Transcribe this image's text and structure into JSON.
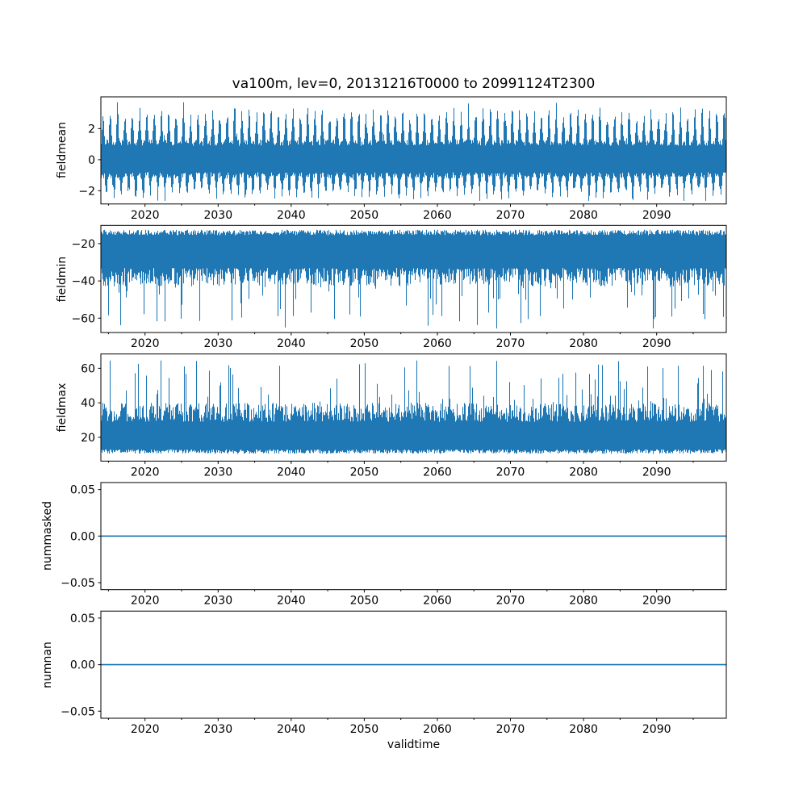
{
  "figure": {
    "background": "#ffffff",
    "line_color": "#1f77b4",
    "axes_color": "#000000"
  },
  "chart_data": [
    {
      "type": "line",
      "title": "va100m, lev=0, 20131216T0000 to 20991124T2300",
      "ylabel": "fieldmean",
      "xlabel": "",
      "xlim": [
        2013.96,
        2099.53
      ],
      "ylim": [
        -2.85,
        4.05
      ],
      "xticks": [
        2020,
        2030,
        2040,
        2050,
        2060,
        2070,
        2080,
        2090
      ],
      "xtick_labels": [
        "2020",
        "2030",
        "2040",
        "2050",
        "2060",
        "2070",
        "2080",
        "2090"
      ],
      "xticks_minor": [
        2015,
        2025,
        2035,
        2045,
        2055,
        2065,
        2075,
        2085,
        2095
      ],
      "yticks": [
        -2,
        0,
        2
      ],
      "ytick_labels": [
        "−2",
        "0",
        "2"
      ],
      "grid": false,
      "legend": null,
      "series": [
        {
          "name": "fieldmean",
          "color": "#1f77b4",
          "style": "seasonal_band",
          "period_years": 1,
          "base_top": 0.9,
          "base_top_jitter": 0.4,
          "seasonal_top": 1.4,
          "seasonal_top_jitter": 0.9,
          "base_bottom": -0.8,
          "base_bottom_jitter": 0.4,
          "seasonal_bottom": 0.75,
          "seasonal_bottom_jitter": 0.85,
          "clip": [
            -2.65,
            3.7
          ],
          "summary": {
            "dense_core_band": [
              -1.0,
              1.2
            ],
            "annual_high_peaks": [
              2.2,
              3.7
            ],
            "annual_low_peaks": [
              -1.8,
              -2.6
            ]
          }
        }
      ]
    },
    {
      "type": "line",
      "title": "",
      "ylabel": "fieldmin",
      "xlabel": "",
      "xlim": [
        2013.96,
        2099.53
      ],
      "ylim": [
        -67.7,
        -10.2
      ],
      "xticks": [
        2020,
        2030,
        2040,
        2050,
        2060,
        2070,
        2080,
        2090
      ],
      "xtick_labels": [
        "2020",
        "2030",
        "2040",
        "2050",
        "2060",
        "2070",
        "2080",
        "2090"
      ],
      "xticks_minor": [
        2015,
        2025,
        2035,
        2045,
        2055,
        2065,
        2075,
        2085,
        2095
      ],
      "yticks": [
        -60,
        -40,
        -20
      ],
      "ytick_labels": [
        "−60",
        "−40",
        "−20"
      ],
      "grid": false,
      "legend": null,
      "series": [
        {
          "name": "fieldmin",
          "color": "#1f77b4",
          "style": "spike_band",
          "spike_dir": "down",
          "base_top": -12.5,
          "base_top_jitter": 3,
          "base_bottom": -33,
          "base_bottom_jitter": 10,
          "base_pow": 1.4,
          "spike_prob": 0.13,
          "spike_min": 6,
          "spike_max": 30,
          "spike_pow": 1.8,
          "clip": [
            -65.5,
            -10.5
          ],
          "summary": {
            "dense_core_band": [
              -40,
              -13
            ],
            "spike_extremes": [
              -45,
              -65
            ]
          }
        }
      ]
    },
    {
      "type": "line",
      "title": "",
      "ylabel": "fieldmax",
      "xlabel": "",
      "xlim": [
        2013.96,
        2099.53
      ],
      "ylim": [
        6.2,
        68.3
      ],
      "xticks": [
        2020,
        2030,
        2040,
        2050,
        2060,
        2070,
        2080,
        2090
      ],
      "xtick_labels": [
        "2020",
        "2030",
        "2040",
        "2050",
        "2060",
        "2070",
        "2080",
        "2090"
      ],
      "xticks_minor": [
        2015,
        2025,
        2035,
        2045,
        2055,
        2065,
        2075,
        2085,
        2095
      ],
      "yticks": [
        20,
        40,
        60
      ],
      "ytick_labels": [
        "20",
        "40",
        "60"
      ],
      "grid": false,
      "legend": null,
      "series": [
        {
          "name": "fieldmax",
          "color": "#1f77b4",
          "style": "spike_band",
          "spike_dir": "up",
          "base_top": 29,
          "base_top_jitter": 11,
          "base_bottom": 10.5,
          "base_bottom_jitter": 2.5,
          "base_pow": 1.2,
          "spike_prob": 0.15,
          "spike_min": 6,
          "spike_max": 34,
          "spike_pow": 2,
          "clip": [
            7,
            64.5
          ],
          "summary": {
            "dense_core_band": [
              11,
              38
            ],
            "spike_extremes": [
              45,
              65
            ]
          }
        }
      ]
    },
    {
      "type": "line",
      "title": "",
      "ylabel": "nummasked",
      "xlabel": "",
      "xlim": [
        2013.96,
        2099.53
      ],
      "ylim": [
        -0.0575,
        0.0575
      ],
      "xticks": [
        2020,
        2030,
        2040,
        2050,
        2060,
        2070,
        2080,
        2090
      ],
      "xtick_labels": [
        "2020",
        "2030",
        "2040",
        "2050",
        "2060",
        "2070",
        "2080",
        "2090"
      ],
      "xticks_minor": [
        2015,
        2025,
        2035,
        2045,
        2055,
        2065,
        2075,
        2085,
        2095
      ],
      "yticks": [
        -0.05,
        0,
        0.05
      ],
      "ytick_labels": [
        "−0.05",
        "0.00",
        "0.05"
      ],
      "grid": false,
      "legend": null,
      "series": [
        {
          "name": "nummasked",
          "color": "#1f77b4",
          "style": "flat",
          "value": 0
        }
      ]
    },
    {
      "type": "line",
      "title": "",
      "ylabel": "numnan",
      "xlabel": "validtime",
      "xlim": [
        2013.96,
        2099.53
      ],
      "ylim": [
        -0.0575,
        0.0575
      ],
      "xticks": [
        2020,
        2030,
        2040,
        2050,
        2060,
        2070,
        2080,
        2090
      ],
      "xtick_labels": [
        "2020",
        "2030",
        "2040",
        "2050",
        "2060",
        "2070",
        "2080",
        "2090"
      ],
      "xticks_minor": [
        2015,
        2025,
        2035,
        2045,
        2055,
        2065,
        2075,
        2085,
        2095
      ],
      "yticks": [
        -0.05,
        0,
        0.05
      ],
      "ytick_labels": [
        "−0.05",
        "0.00",
        "0.05"
      ],
      "grid": false,
      "legend": null,
      "series": [
        {
          "name": "numnan",
          "color": "#1f77b4",
          "style": "flat",
          "value": 0
        }
      ]
    }
  ]
}
